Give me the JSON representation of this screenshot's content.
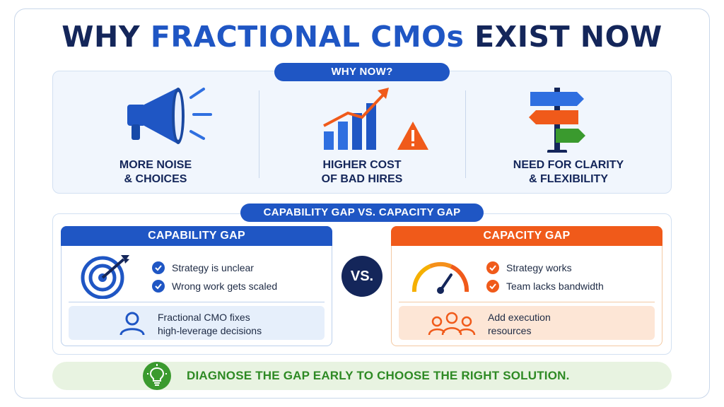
{
  "title": {
    "part1": "WHY ",
    "accent": "FRACTIONAL CMOs",
    "part2": " EXIST NOW"
  },
  "why_now": {
    "label": "WHY NOW?",
    "items": [
      {
        "line1": "MORE NOISE",
        "line2": "& CHOICES",
        "icon": "megaphone-icon"
      },
      {
        "line1": "HIGHER COST",
        "line2": "OF BAD HIRES",
        "icon": "rising-cost-warning-icon"
      },
      {
        "line1": "NEED FOR CLARITY",
        "line2": "& FLEXIBILITY",
        "icon": "signpost-icon"
      }
    ]
  },
  "gap_section": {
    "label": "CAPABILITY GAP VS. CAPACITY GAP",
    "vs": "VS.",
    "capability": {
      "title": "CAPABILITY GAP",
      "checks": [
        "Strategy is unclear",
        "Wrong work gets scaled"
      ],
      "foot_line1": "Fractional CMO fixes",
      "foot_line2": "high-leverage decisions",
      "icon": "target-icon",
      "foot_icon": "person-icon"
    },
    "capacity": {
      "title": "CAPACITY GAP",
      "checks": [
        "Strategy works",
        "Team lacks bandwidth"
      ],
      "foot_line1": "Add execution",
      "foot_line2": "resources",
      "icon": "gauge-icon",
      "foot_icon": "team-icon"
    }
  },
  "banner": {
    "text": "DIAGNOSE THE GAP EARLY TO CHOOSE THE RIGHT SOLUTION.",
    "icon": "lightbulb-icon"
  },
  "colors": {
    "navy": "#14265a",
    "blue": "#1f56c4",
    "orange": "#f05a1a",
    "green": "#2e8a24"
  }
}
